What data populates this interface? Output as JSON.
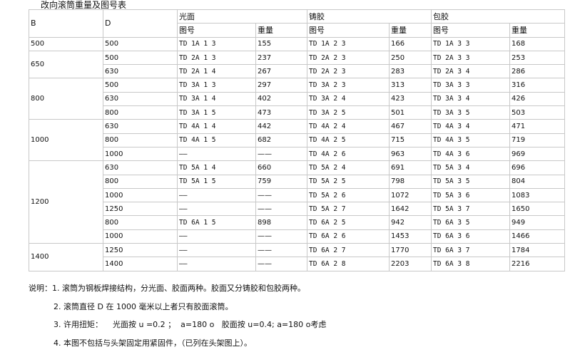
{
  "title": "改向滚筒重量及图号表",
  "headers": {
    "b": "B",
    "d": "D",
    "groups": [
      "光面",
      "铸胶",
      "包胶"
    ],
    "code": "图号",
    "weight": "重量"
  },
  "groups": [
    {
      "b": "500",
      "rows": [
        [
          "500",
          "TD 1A 1 3",
          "155",
          "TD 1A 2 3",
          "166",
          "TD 1A 3 3",
          "168"
        ]
      ]
    },
    {
      "b": "650",
      "rows": [
        [
          "500",
          "TD 2A 1 3",
          "237",
          "TD 2A 2 3",
          "250",
          "TD 2A 3 3",
          "253"
        ],
        [
          "630",
          "TD 2A 1 4",
          "267",
          "TD 2A 2 3",
          "283",
          "TD 2A 3 4",
          "286"
        ]
      ]
    },
    {
      "b": "800",
      "rows": [
        [
          "500",
          "TD 3A 1 3",
          "297",
          "TD 3A 2 3",
          "313",
          "TD 3A 3 3",
          "316"
        ],
        [
          "630",
          "TD 3A 1 4",
          "402",
          "TD 3A 2 4",
          "423",
          "TD 3A 3 4",
          "426"
        ],
        [
          "800",
          "TD 3A 1 5",
          "473",
          "TD 3A 2 5",
          "501",
          "TD 3A 3 5",
          "503"
        ]
      ]
    },
    {
      "b": "1000",
      "rows": [
        [
          "630",
          "TD 4A 1 4",
          "442",
          "TD 4A 2 4",
          "467",
          "TD 4A 3 4",
          "471"
        ],
        [
          "800",
          "TD 4A 1 5",
          "682",
          "TD 4A 2 5",
          "715",
          "TD 4A 3 5",
          "719"
        ],
        [
          "1000",
          "——",
          "——",
          "TD 4A 2 6",
          "963",
          "TD 4A 3 6",
          "969"
        ]
      ]
    },
    {
      "b": "1200",
      "rows": [
        [
          "630",
          "TD 5A 1 4",
          "660",
          "TD 5A 2 4",
          "691",
          "TD 5A 3 4",
          "696"
        ],
        [
          "800",
          "TD 5A 1 5",
          "759",
          "TD 5A 2 5",
          "798",
          "TD 5A 3 5",
          "804"
        ],
        [
          "1000",
          "——",
          "——",
          "TD 5A 2 6",
          "1072",
          "TD 5A 3 6",
          "1083"
        ],
        [
          "1250",
          "——",
          "——",
          "TD 5A 2 7",
          "1642",
          "TD 5A 3 7",
          "1650"
        ],
        [
          "800",
          "TD 6A 1 5",
          "898",
          "TD 6A 2 5",
          "942",
          "TD 6A 3 5",
          "949"
        ],
        [
          "1000",
          "——",
          "——",
          "TD 6A 2 6",
          "1453",
          "TD 6A 3 6",
          "1466"
        ]
      ]
    },
    {
      "b": "1400",
      "rows": [
        [
          "1250",
          "——",
          "——",
          "TD 6A 2 7",
          "1770",
          "TD 6A 3 7",
          "1784"
        ],
        [
          "1400",
          "——",
          "——",
          "TD 6A 2 8",
          "2203",
          "TD 6A 3 8",
          "2216"
        ]
      ]
    }
  ],
  "notes": [
    "说明：1. 滚筒为钢板焊接结构，分光面、胶面两种。胶面又分铸胶和包胶两种。",
    "2. 滚筒直径 D 在 1000 毫米以上者只有胶面滚筒。",
    "3. 许用扭矩：    光面按 u =0.2 ；  a=180 o   胶面按 u=0.4; a=180 o考虑",
    "4. 本图不包括与头架固定用紧固件，（已列在头架图上）。"
  ]
}
